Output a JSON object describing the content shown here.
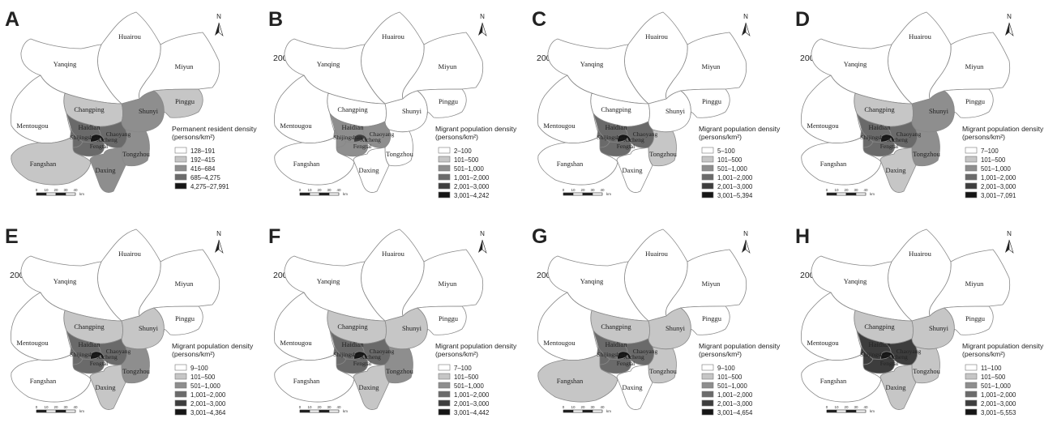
{
  "district_names": {
    "huairou": "Huairou",
    "yanqing": "Yanqing",
    "miyun": "Miyun",
    "changping": "Changping",
    "shunyi": "Shunyi",
    "pinggu": "Pinggu",
    "mentougou": "Mentougou",
    "haidian": "Haidian",
    "shijingshan": "Shijingshan",
    "chaoyang": "Chaoyang",
    "fengtai": "Fengtai",
    "xicheng": "Xicheng",
    "tongzhou": "Tongzhou",
    "fangshan": "Fangshan",
    "daxing": "Daxing"
  },
  "north_label": "N",
  "scale_ticks": [
    "0",
    "10",
    "20",
    "30",
    "40"
  ],
  "scale_unit": "km",
  "palette": [
    "#ffffff",
    "#c6c6c6",
    "#8e8e8e",
    "#6a6a6a",
    "#3d3d3d",
    "#151515"
  ],
  "panels": [
    {
      "letter": "A",
      "year": "",
      "legend_title": [
        "Permanent resident density",
        "(persons/km²)"
      ],
      "legend_items": [
        "128–191",
        "192–415",
        "416–684",
        "685–4,275",
        "4,275–27,991"
      ],
      "legend_levels": [
        0,
        1,
        2,
        3,
        5
      ],
      "classes": {
        "huairou": 0,
        "yanqing": 0,
        "miyun": 0,
        "changping": 1,
        "shunyi": 2,
        "pinggu": 1,
        "mentougou": 0,
        "haidian": 3,
        "shijingshan": 3,
        "chaoyang": 3,
        "fengtai": 3,
        "xicheng": 5,
        "tongzhou": 2,
        "fangshan": 1,
        "daxing": 2
      }
    },
    {
      "letter": "B",
      "year": "2000",
      "legend_title": [
        "Migrant population density",
        "(persons/km²)"
      ],
      "legend_items": [
        "2–100",
        "101–500",
        "501–1,000",
        "1,001–2,000",
        "2,001–3,000",
        "3,001–4,242"
      ],
      "legend_levels": [
        0,
        1,
        2,
        3,
        4,
        5
      ],
      "classes": {
        "huairou": 0,
        "yanqing": 0,
        "miyun": 0,
        "changping": 0,
        "shunyi": 0,
        "pinggu": 0,
        "mentougou": 0,
        "haidian": 2,
        "shijingshan": 2,
        "chaoyang": 2,
        "fengtai": 2,
        "xicheng": 4,
        "tongzhou": 0,
        "fangshan": 0,
        "daxing": 0
      }
    },
    {
      "letter": "C",
      "year": "2001",
      "legend_title": [
        "Migrant population density",
        "(persons/km²)"
      ],
      "legend_items": [
        "5–100",
        "101–500",
        "501–1,000",
        "1,001–2,000",
        "2,001–3,000",
        "3,001–5,394"
      ],
      "legend_levels": [
        0,
        1,
        2,
        3,
        4,
        5
      ],
      "classes": {
        "huairou": 0,
        "yanqing": 0,
        "miyun": 0,
        "changping": 0,
        "shunyi": 0,
        "pinggu": 0,
        "mentougou": 0,
        "haidian": 3,
        "shijingshan": 3,
        "chaoyang": 3,
        "fengtai": 3,
        "xicheng": 5,
        "tongzhou": 1,
        "fangshan": 0,
        "daxing": 0
      }
    },
    {
      "letter": "D",
      "year": "2002",
      "legend_title": [
        "Migrant population density",
        "(persons/km²)"
      ],
      "legend_items": [
        "7–100",
        "101–500",
        "501–1,000",
        "1,001–2,000",
        "2,001–3,000",
        "3,001–7,091"
      ],
      "legend_levels": [
        0,
        1,
        2,
        3,
        4,
        5
      ],
      "classes": {
        "huairou": 0,
        "yanqing": 0,
        "miyun": 0,
        "changping": 1,
        "shunyi": 2,
        "pinggu": 0,
        "mentougou": 0,
        "haidian": 3,
        "shijingshan": 3,
        "chaoyang": 3,
        "fengtai": 3,
        "xicheng": 5,
        "tongzhou": 2,
        "fangshan": 0,
        "daxing": 1
      }
    },
    {
      "letter": "E",
      "year": "2003",
      "legend_title": [
        "Migrant population density",
        "(persons/km²)"
      ],
      "legend_items": [
        "9–100",
        "101–500",
        "501–1,000",
        "1,001–2,000",
        "2,001–3,000",
        "3,001–4,364"
      ],
      "legend_levels": [
        0,
        1,
        2,
        3,
        4,
        5
      ],
      "classes": {
        "huairou": 0,
        "yanqing": 0,
        "miyun": 0,
        "changping": 1,
        "shunyi": 1,
        "pinggu": 0,
        "mentougou": 0,
        "haidian": 3,
        "shijingshan": 3,
        "chaoyang": 3,
        "fengtai": 3,
        "xicheng": 5,
        "tongzhou": 2,
        "fangshan": 0,
        "daxing": 1
      }
    },
    {
      "letter": "F",
      "year": "2004",
      "legend_title": [
        "Migrant population density",
        "(persons/km²)"
      ],
      "legend_items": [
        "7–100",
        "101–500",
        "501–1,000",
        "1,001–2,000",
        "2,001–3,000",
        "3,001–4,442"
      ],
      "legend_levels": [
        0,
        1,
        2,
        3,
        4,
        5
      ],
      "classes": {
        "huairou": 0,
        "yanqing": 0,
        "miyun": 0,
        "changping": 1,
        "shunyi": 1,
        "pinggu": 0,
        "mentougou": 0,
        "haidian": 3,
        "shijingshan": 3,
        "chaoyang": 3,
        "fengtai": 3,
        "xicheng": 5,
        "tongzhou": 2,
        "fangshan": 0,
        "daxing": 1
      }
    },
    {
      "letter": "G",
      "year": "2005",
      "legend_title": [
        "Migrant population density",
        "(persons/km²)"
      ],
      "legend_items": [
        "9–100",
        "101–500",
        "501–1,000",
        "1,001–2,000",
        "2,001–3,000",
        "3,001–4,654"
      ],
      "legend_levels": [
        0,
        1,
        2,
        3,
        4,
        5
      ],
      "classes": {
        "huairou": 0,
        "yanqing": 0,
        "miyun": 0,
        "changping": 1,
        "shunyi": 1,
        "pinggu": 0,
        "mentougou": 0,
        "haidian": 3,
        "shijingshan": 3,
        "chaoyang": 3,
        "fengtai": 3,
        "xicheng": 5,
        "tongzhou": 1,
        "fangshan": 1,
        "daxing": 0
      }
    },
    {
      "letter": "H",
      "year": "2006",
      "legend_title": [
        "Migrant population density",
        "(persons/km²)"
      ],
      "legend_items": [
        "11–100",
        "101–500",
        "501–1,000",
        "1,001–2,000",
        "2,001–3,000",
        "3,001–5,553"
      ],
      "legend_levels": [
        0,
        1,
        2,
        3,
        4,
        5
      ],
      "classes": {
        "huairou": 0,
        "yanqing": 0,
        "miyun": 0,
        "changping": 1,
        "shunyi": 1,
        "pinggu": 0,
        "mentougou": 0,
        "haidian": 4,
        "shijingshan": 4,
        "chaoyang": 4,
        "fengtai": 4,
        "xicheng": 5,
        "tongzhou": 1,
        "fangshan": 0,
        "daxing": 1
      }
    }
  ]
}
